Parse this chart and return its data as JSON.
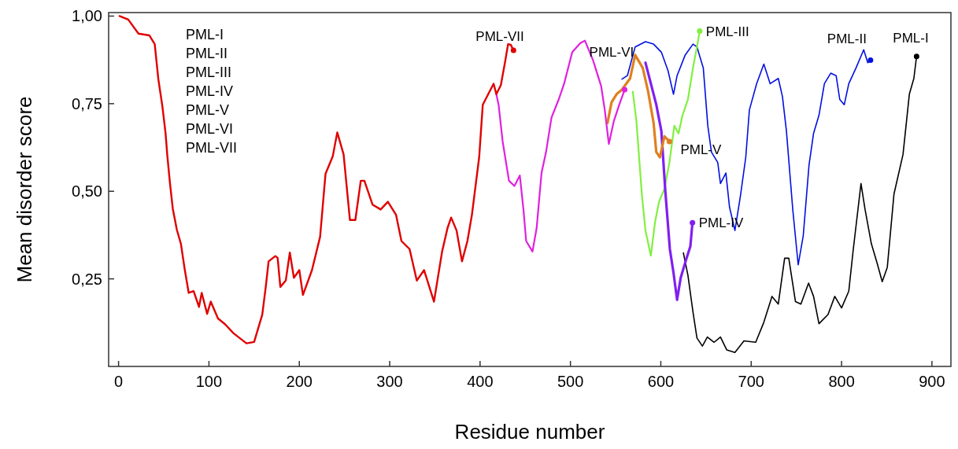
{
  "chart_data": {
    "type": "line",
    "xlabel": "Residue number",
    "ylabel": "Mean disorder score",
    "annotations": [
      "PML-I",
      "PML-II",
      "PML-III",
      "PML-IV",
      "PML-V",
      "PML-VI",
      "PML-VII"
    ],
    "xlim": [
      -11,
      921
    ],
    "xticks": [
      0,
      100,
      200,
      300,
      400,
      500,
      600,
      700,
      800,
      900
    ],
    "ylim": [
      0,
      1.01
    ],
    "yticks": [
      {
        "value": 1,
        "label": "1,00"
      },
      {
        "value": 0.75,
        "label": "0,75"
      },
      {
        "value": 0.5,
        "label": "0,50"
      },
      {
        "value": 0.25,
        "label": "0,25"
      }
    ],
    "series": [
      {
        "name": "PML-I",
        "color": "#000000",
        "x": [
          625,
          630,
          635.6,
          640,
          646,
          651.5,
          659,
          666,
          673,
          682,
          692,
          705,
          714,
          723,
          730,
          737,
          741.6,
          749,
          755,
          763.5,
          769,
          775,
          785,
          792.5,
          800,
          808,
          813,
          821.5,
          826,
          833,
          839,
          845,
          850.6,
          858,
          868,
          875,
          880,
          883
        ],
        "values": [
          0.324,
          0.26,
          0.155,
          0.081,
          0.058,
          0.084,
          0.069,
          0.084,
          0.047,
          0.04,
          0.073,
          0.069,
          0.126,
          0.2,
          0.178,
          0.309,
          0.309,
          0.185,
          0.178,
          0.238,
          0.2,
          0.122,
          0.148,
          0.2,
          0.167,
          0.215,
          0.335,
          0.522,
          0.448,
          0.35,
          0.298,
          0.242,
          0.283,
          0.492,
          0.605,
          0.777,
          0.822,
          0.885
        ]
      },
      {
        "name": "PML-II",
        "color": "#0010e0",
        "x": [
          557,
          563,
          571.6,
          583,
          592,
          600.6,
          608,
          614,
          618,
          627,
          635.6,
          640,
          647,
          652,
          656,
          663,
          666,
          672,
          676,
          682,
          688,
          694,
          698,
          706,
          714,
          721,
          730,
          734.6,
          739,
          746,
          752,
          757.6,
          764,
          769,
          775,
          781,
          788,
          794,
          798,
          803,
          808,
          816,
          824.5,
          829,
          832
        ],
        "values": [
          0.82,
          0.83,
          0.912,
          0.927,
          0.92,
          0.897,
          0.844,
          0.777,
          0.83,
          0.889,
          0.92,
          0.912,
          0.852,
          0.687,
          0.612,
          0.582,
          0.522,
          0.552,
          0.455,
          0.388,
          0.485,
          0.597,
          0.732,
          0.807,
          0.863,
          0.807,
          0.822,
          0.77,
          0.672,
          0.448,
          0.29,
          0.373,
          0.575,
          0.665,
          0.717,
          0.807,
          0.837,
          0.83,
          0.762,
          0.747,
          0.807,
          0.852,
          0.904,
          0.867,
          0.874
        ]
      },
      {
        "name": "PML-III",
        "color": "#80f040",
        "x": [
          569,
          573,
          579,
          583,
          589,
          593.5,
          598,
          604,
          609.5,
          615,
          619.6,
          624,
          630,
          635.6,
          640,
          643
        ],
        "values": [
          0.784,
          0.7,
          0.492,
          0.388,
          0.316,
          0.41,
          0.47,
          0.507,
          0.582,
          0.687,
          0.665,
          0.717,
          0.762,
          0.852,
          0.912,
          0.957
        ]
      },
      {
        "name": "PML-IV",
        "color": "#8020f0",
        "x": [
          583,
          595,
          600.6,
          605,
          610,
          614,
          618,
          622,
          628,
          632.7,
          635
        ],
        "values": [
          0.867,
          0.747,
          0.672,
          0.5,
          0.335,
          0.268,
          0.19,
          0.253,
          0.305,
          0.343,
          0.41
        ]
      },
      {
        "name": "PML-V",
        "color": "#e08020",
        "x": [
          541,
          545.5,
          551,
          557,
          566,
          571.6,
          580,
          586,
          592,
          595,
          599,
          604,
          609.5
        ],
        "values": [
          0.695,
          0.754,
          0.777,
          0.79,
          0.822,
          0.889,
          0.852,
          0.784,
          0.695,
          0.612,
          0.597,
          0.657,
          0.642
        ]
      },
      {
        "name": "PML-VI",
        "color": "#e020e0",
        "x": [
          418,
          420.5,
          425,
          432,
          438,
          444,
          448,
          451,
          458,
          462.6,
          468,
          473,
          479,
          487,
          493,
          502,
          511,
          516,
          525,
          534,
          538,
          542.5,
          548,
          554,
          560
        ],
        "values": [
          0.777,
          0.747,
          0.642,
          0.53,
          0.515,
          0.545,
          0.448,
          0.358,
          0.328,
          0.395,
          0.552,
          0.612,
          0.71,
          0.762,
          0.807,
          0.897,
          0.923,
          0.93,
          0.874,
          0.8,
          0.732,
          0.635,
          0.7,
          0.747,
          0.79
        ]
      },
      {
        "name": "PML-VII",
        "color": "#e00000",
        "x": [
          1,
          10.7,
          22,
          34,
          40,
          44,
          48.6,
          52,
          54,
          57,
          60,
          64.5,
          69,
          73,
          77.6,
          83,
          89,
          92,
          98,
          102,
          110,
          118,
          127,
          141.5,
          150,
          159,
          163,
          166,
          173.5,
          176,
          179,
          185,
          189.5,
          194,
          200,
          204,
          214,
          223,
          229,
          237,
          242,
          249,
          256,
          262,
          268,
          272,
          281,
          290,
          298,
          307,
          313,
          322,
          330,
          338,
          349,
          358,
          364,
          368,
          374,
          380,
          386,
          391,
          399,
          403,
          409,
          415,
          418,
          423,
          428,
          431,
          434,
          437
        ],
        "values": [
          1,
          0.99,
          0.95,
          0.945,
          0.92,
          0.82,
          0.74,
          0.665,
          0.6,
          0.52,
          0.45,
          0.39,
          0.35,
          0.28,
          0.21,
          0.215,
          0.17,
          0.21,
          0.15,
          0.185,
          0.137,
          0.12,
          0.095,
          0.066,
          0.07,
          0.148,
          0.23,
          0.3,
          0.315,
          0.31,
          0.227,
          0.245,
          0.325,
          0.253,
          0.275,
          0.204,
          0.275,
          0.37,
          0.55,
          0.6,
          0.668,
          0.605,
          0.418,
          0.418,
          0.53,
          0.53,
          0.462,
          0.448,
          0.47,
          0.433,
          0.358,
          0.335,
          0.245,
          0.275,
          0.185,
          0.328,
          0.395,
          0.425,
          0.388,
          0.3,
          0.358,
          0.433,
          0.597,
          0.747,
          0.777,
          0.807,
          0.777,
          0.803,
          0.874,
          0.92,
          0.918,
          0.902
        ]
      }
    ]
  }
}
